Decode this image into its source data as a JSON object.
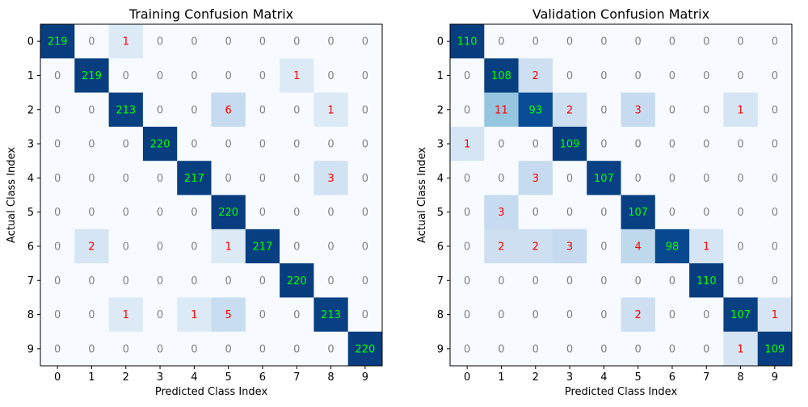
{
  "colors": {
    "text_diagonal": "#00ff00",
    "text_nonzero": "#ff0000",
    "text_zero": "#808080",
    "cmap": "Blues"
  },
  "chart_data": [
    {
      "type": "heatmap",
      "title": "Training Confusion Matrix",
      "xlabel": "Predicted Class Index",
      "ylabel": "Actual Class Index",
      "x": [
        "0",
        "1",
        "2",
        "3",
        "4",
        "5",
        "6",
        "7",
        "8",
        "9"
      ],
      "y": [
        "0",
        "1",
        "2",
        "3",
        "4",
        "5",
        "6",
        "7",
        "8",
        "9"
      ],
      "vmax": 220,
      "matrix": [
        [
          219,
          0,
          1,
          0,
          0,
          0,
          0,
          0,
          0,
          0
        ],
        [
          0,
          219,
          0,
          0,
          0,
          0,
          0,
          1,
          0,
          0
        ],
        [
          0,
          0,
          213,
          0,
          0,
          6,
          0,
          0,
          1,
          0
        ],
        [
          0,
          0,
          0,
          220,
          0,
          0,
          0,
          0,
          0,
          0
        ],
        [
          0,
          0,
          0,
          0,
          217,
          0,
          0,
          0,
          3,
          0
        ],
        [
          0,
          0,
          0,
          0,
          0,
          220,
          0,
          0,
          0,
          0
        ],
        [
          0,
          2,
          0,
          0,
          0,
          1,
          217,
          0,
          0,
          0
        ],
        [
          0,
          0,
          0,
          0,
          0,
          0,
          0,
          220,
          0,
          0
        ],
        [
          0,
          0,
          1,
          0,
          1,
          5,
          0,
          0,
          213,
          0
        ],
        [
          0,
          0,
          0,
          0,
          0,
          0,
          0,
          0,
          0,
          220
        ]
      ]
    },
    {
      "type": "heatmap",
      "title": "Validation Confusion Matrix",
      "xlabel": "Predicted Class Index",
      "ylabel": "Actual Class Index",
      "x": [
        "0",
        "1",
        "2",
        "3",
        "4",
        "5",
        "6",
        "7",
        "8",
        "9"
      ],
      "y": [
        "0",
        "1",
        "2",
        "3",
        "4",
        "5",
        "6",
        "7",
        "8",
        "9"
      ],
      "vmax": 110,
      "matrix": [
        [
          110,
          0,
          0,
          0,
          0,
          0,
          0,
          0,
          0,
          0
        ],
        [
          0,
          108,
          2,
          0,
          0,
          0,
          0,
          0,
          0,
          0
        ],
        [
          0,
          11,
          93,
          2,
          0,
          3,
          0,
          0,
          1,
          0
        ],
        [
          1,
          0,
          0,
          109,
          0,
          0,
          0,
          0,
          0,
          0
        ],
        [
          0,
          0,
          3,
          0,
          107,
          0,
          0,
          0,
          0,
          0
        ],
        [
          0,
          3,
          0,
          0,
          0,
          107,
          0,
          0,
          0,
          0
        ],
        [
          0,
          2,
          2,
          3,
          0,
          4,
          98,
          1,
          0,
          0
        ],
        [
          0,
          0,
          0,
          0,
          0,
          0,
          0,
          110,
          0,
          0
        ],
        [
          0,
          0,
          0,
          0,
          0,
          2,
          0,
          0,
          107,
          1
        ],
        [
          0,
          0,
          0,
          0,
          0,
          0,
          0,
          0,
          1,
          109
        ]
      ]
    }
  ]
}
